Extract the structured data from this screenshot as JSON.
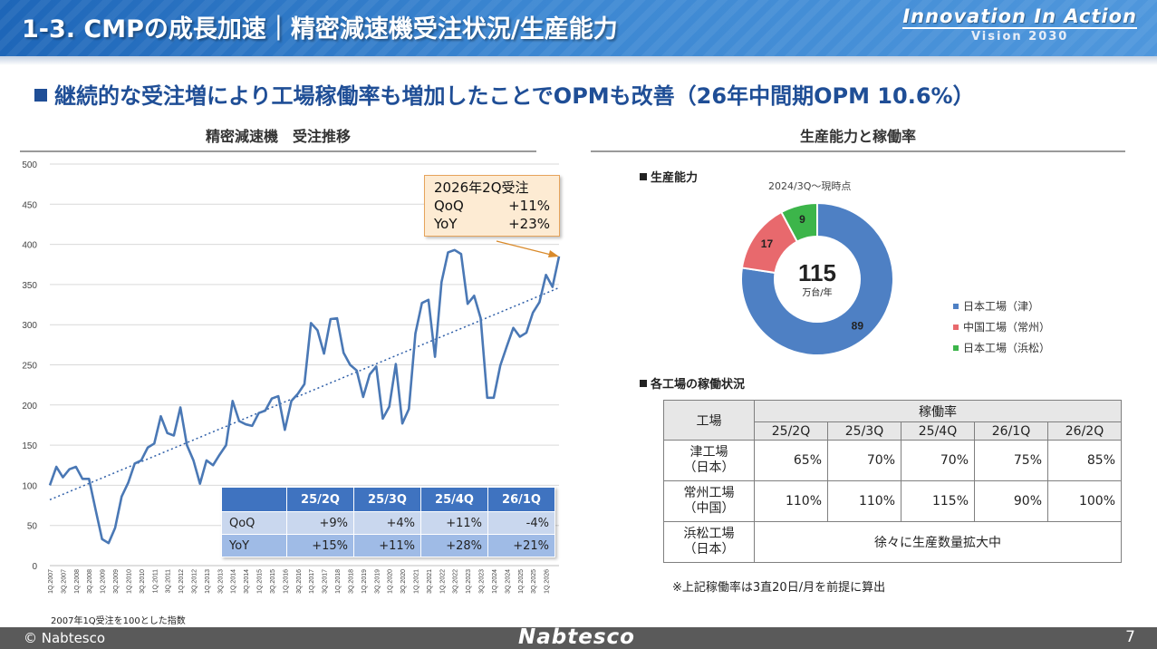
{
  "header": {
    "title": "1-3. CMPの成長加速｜精密減速機受注状況/生産能力",
    "brand_main": "Innovation In Action",
    "brand_sub": "Vision 2030"
  },
  "headline": "継続的な受注増により工場稼働率も増加したことでOPMも改善（26年中間期OPM 10.6%）",
  "orders_chart": {
    "title": "精密減速機　受注推移",
    "note": "2007年1Q受注を100とした指数",
    "callout": {
      "title": "2026年2Q受注",
      "qoq_label": "QoQ",
      "qoq_value": "+11%",
      "yoy_label": "YoY",
      "yoy_value": "+23%"
    },
    "growth_table": {
      "headers": [
        "25/2Q",
        "25/3Q",
        "25/4Q",
        "26/1Q"
      ],
      "rows": [
        {
          "label": "QoQ",
          "values": [
            "+9%",
            "+4%",
            "+11%",
            "-4%"
          ]
        },
        {
          "label": "YoY",
          "values": [
            "+15%",
            "+11%",
            "+28%",
            "+21%"
          ]
        }
      ]
    }
  },
  "chart_data": {
    "type": "line",
    "title": "精密減速機　受注推移",
    "ylim": [
      0,
      500
    ],
    "yticks": [
      0,
      50,
      100,
      150,
      200,
      250,
      300,
      350,
      400,
      450,
      500
    ],
    "xtick_labels": [
      "1Q.2007",
      "3Q.2007",
      "1Q.2008",
      "3Q.2008",
      "1Q.2009",
      "3Q.2009",
      "1Q.2010",
      "3Q.2010",
      "1Q.2011",
      "3Q.2011",
      "1Q.2012",
      "3Q.2012",
      "1Q.2013",
      "3Q.2013",
      "1Q.2014",
      "3Q.2014",
      "1Q.2015",
      "3Q.2015",
      "1Q.2016",
      "3Q.2016",
      "1Q.2017",
      "3Q.2017",
      "1Q.2018",
      "3Q.2018",
      "1Q.2019",
      "3Q.2019",
      "1Q.2020",
      "3Q.2020",
      "1Q.2021",
      "3Q.2021",
      "1Q.2022",
      "3Q.2022",
      "1Q.2023",
      "3Q.2023",
      "1Q.2024",
      "3Q.2024",
      "1Q.2025",
      "3Q.2025",
      "1Q.2026"
    ],
    "grid": true,
    "series": [
      {
        "color": "#4a78b5",
        "values": [
          100,
          123,
          110,
          120,
          123,
          108,
          108,
          70,
          33,
          28,
          47,
          86,
          103,
          127,
          131,
          147,
          152,
          186,
          165,
          162,
          197,
          150,
          131,
          102,
          131,
          125,
          138,
          150,
          205,
          180,
          176,
          174,
          190,
          193,
          208,
          211,
          169,
          205,
          214,
          226,
          302,
          293,
          264,
          307,
          308,
          265,
          250,
          243,
          210,
          238,
          248,
          183,
          198,
          251,
          177,
          195,
          289,
          327,
          331,
          260,
          353,
          390,
          393,
          388,
          326,
          336,
          308,
          209,
          209,
          249,
          273,
          296,
          285,
          290,
          315,
          328,
          362,
          347,
          385
        ]
      },
      {
        "style": "trend",
        "color": "#2f5fa8",
        "values": [
          82,
          346
        ]
      }
    ]
  },
  "capacity": {
    "title": "生産能力と稼働率",
    "subtitle": "生産能力",
    "donut_note": "2024/3Q～現時点",
    "total_value": "115",
    "total_unit": "万台/年",
    "chart_data": {
      "type": "pie",
      "slices": [
        {
          "label": "日本工場（津）",
          "value": 89,
          "color": "#4e80c4"
        },
        {
          "label": "中国工場（常州）",
          "value": 17,
          "color": "#e8696d"
        },
        {
          "label": "日本工場（浜松）",
          "value": 9,
          "color": "#3cb54a"
        }
      ]
    }
  },
  "utilization": {
    "subtitle": "各工場の稼働状況",
    "factory_header": "工場",
    "rate_header": "稼働率",
    "quarters": [
      "25/2Q",
      "25/3Q",
      "25/4Q",
      "26/1Q",
      "26/2Q"
    ],
    "rows": [
      {
        "name": "津工場",
        "country": "（日本）",
        "values": [
          "65%",
          "70%",
          "70%",
          "75%",
          "85%"
        ]
      },
      {
        "name": "常州工場",
        "country": "（中国）",
        "values": [
          "110%",
          "110%",
          "115%",
          "90%",
          "100%"
        ]
      },
      {
        "name": "浜松工場",
        "country": "（日本）",
        "span_text": "徐々に生産数量拡大中"
      }
    ],
    "note": "※上記稼働率は3直20日/月を前提に算出"
  },
  "footer": {
    "copyright": "© Nabtesco",
    "logo": "Nabtesco",
    "page": "7"
  }
}
